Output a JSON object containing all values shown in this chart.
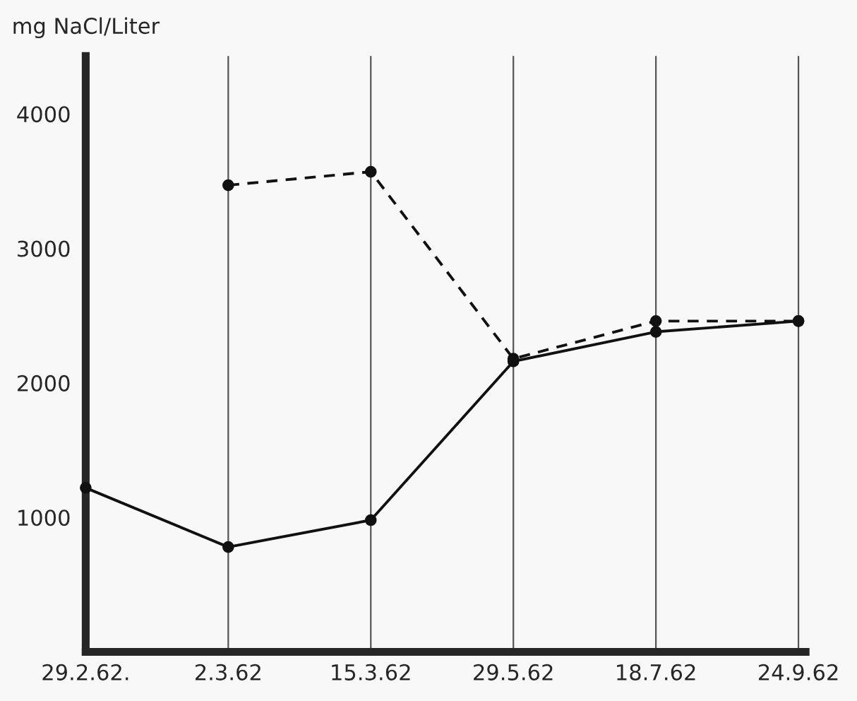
{
  "chart_data": {
    "type": "line",
    "ylabel": "mg NaCl/Liter",
    "categories": [
      "29.2.62.",
      "2.3.62",
      "15.3.62",
      "29.5.62",
      "18.7.62",
      "24.9.62"
    ],
    "series": [
      {
        "color": "#111111",
        "line_style": "solid",
        "values": [
          1220,
          780,
          980,
          2160,
          2380,
          2460
        ]
      },
      {
        "color": "#111111",
        "line_style": "dashed",
        "values": [
          null,
          3470,
          3570,
          2180,
          2460,
          2460
        ]
      }
    ],
    "ylim": [
      0,
      4430
    ],
    "yticks": [
      1000,
      2000,
      3000,
      4000
    ],
    "grid": "x",
    "marker": "circle",
    "legend": false
  }
}
